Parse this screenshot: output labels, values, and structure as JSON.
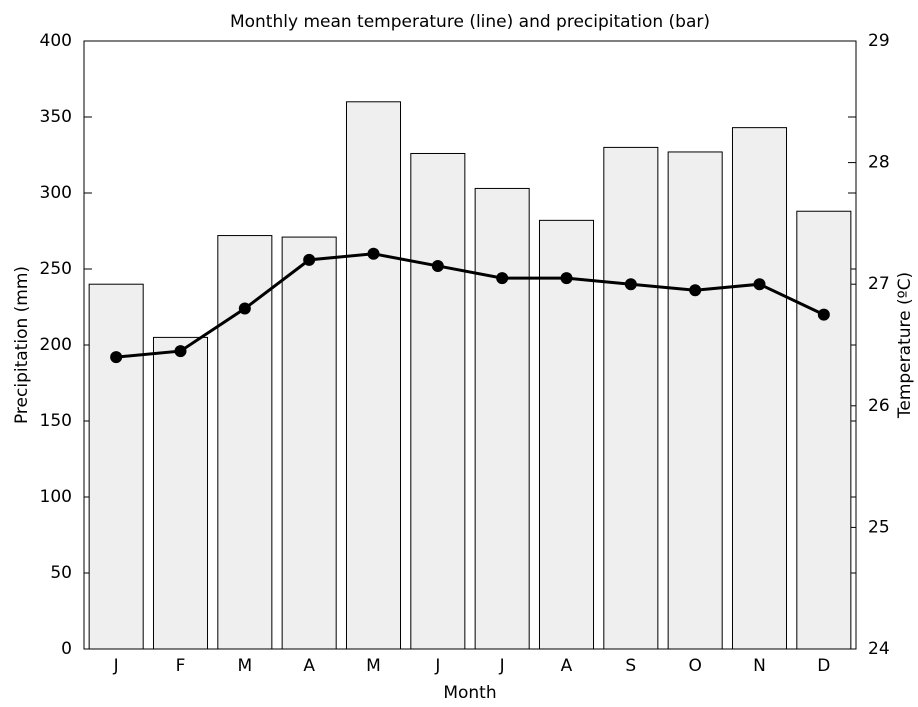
{
  "chart_data": {
    "type": "bar_line",
    "title": "Monthly mean temperature (line) and precipitation (bar)",
    "x_label": "Month",
    "y_label": "Precipitation (mm)",
    "y2_label": "Temperature (ºC)",
    "categories": [
      "J",
      "F",
      "M",
      "A",
      "M",
      "J",
      "J",
      "A",
      "S",
      "O",
      "N",
      "D"
    ],
    "series": [
      {
        "name": "Precipitation",
        "type": "bar",
        "color": "#efefef",
        "values": [
          240,
          205,
          272,
          271,
          360,
          326,
          303,
          282,
          330,
          327,
          343,
          288
        ]
      },
      {
        "name": "Temperature",
        "type": "line",
        "axis": "y2",
        "color": "#000000",
        "values": [
          26.4,
          26.45,
          26.8,
          27.2,
          27.25,
          27.15,
          27.05,
          27.05,
          27.0,
          26.95,
          27.0,
          26.75
        ]
      }
    ],
    "ylim": [
      0,
      400
    ],
    "yticks": [
      0,
      50,
      100,
      150,
      200,
      250,
      300,
      350,
      400
    ],
    "y2lim": [
      24,
      29
    ],
    "y2ticks": [
      24,
      25,
      26,
      27,
      28,
      29
    ]
  }
}
